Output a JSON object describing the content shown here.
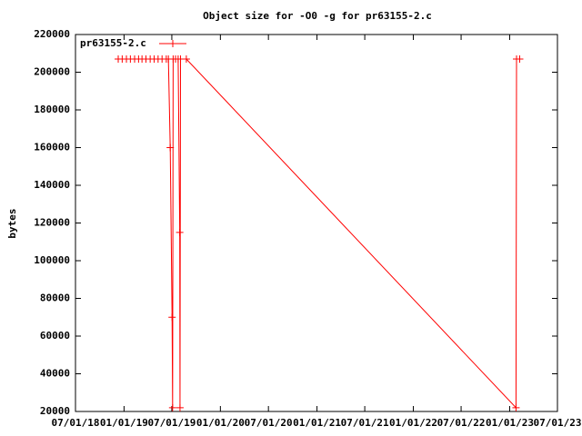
{
  "chart_data": {
    "type": "line",
    "title": "Object size for -O0 -g for pr63155-2.c",
    "y_label": "bytes",
    "x": [
      "2018-12-10",
      "2018-12-25",
      "2019-01-10",
      "2019-01-25",
      "2019-02-10",
      "2019-02-25",
      "2019-03-10",
      "2019-03-25",
      "2019-04-10",
      "2019-04-25",
      "2019-05-10",
      "2019-05-25",
      "2019-06-10",
      "2019-06-18",
      "2019-06-25",
      "2019-07-02",
      "2019-07-04",
      "2019-07-06",
      "2019-07-15",
      "2019-07-25",
      "2019-07-31",
      "2019-08-01",
      "2019-08-03",
      "2019-08-25",
      "2023-01-25",
      "2023-01-27",
      "2023-02-08"
    ],
    "series": [
      {
        "name": "pr63155-2.c",
        "color": "#ff0000",
        "values": [
          207000,
          207000,
          207000,
          207000,
          207000,
          207000,
          207000,
          207000,
          207000,
          207000,
          207000,
          207000,
          207000,
          207000,
          160000,
          70000,
          22000,
          207000,
          207000,
          207000,
          115000,
          22000,
          207000,
          207000,
          22000,
          207000,
          207000
        ]
      }
    ],
    "xlim": [
      "2018-07-01",
      "2023-07-01"
    ],
    "xticks": [
      {
        "value": "2018-07-01",
        "label": "07/01/18"
      },
      {
        "value": "2019-01-01",
        "label": "01/01/19"
      },
      {
        "value": "2019-07-01",
        "label": "07/01/19"
      },
      {
        "value": "2020-01-01",
        "label": "01/01/20"
      },
      {
        "value": "2020-07-01",
        "label": "07/01/20"
      },
      {
        "value": "2021-01-01",
        "label": "01/01/21"
      },
      {
        "value": "2021-07-01",
        "label": "07/01/21"
      },
      {
        "value": "2022-01-01",
        "label": "01/01/22"
      },
      {
        "value": "2022-07-01",
        "label": "07/01/22"
      },
      {
        "value": "2023-01-01",
        "label": "01/01/23"
      },
      {
        "value": "2023-07-01",
        "label": "07/01/23"
      }
    ],
    "ylim": [
      20000,
      220000
    ],
    "yticks": [
      20000,
      40000,
      60000,
      80000,
      100000,
      120000,
      140000,
      160000,
      180000,
      200000,
      220000
    ],
    "legend": "top-left",
    "grid": false
  }
}
